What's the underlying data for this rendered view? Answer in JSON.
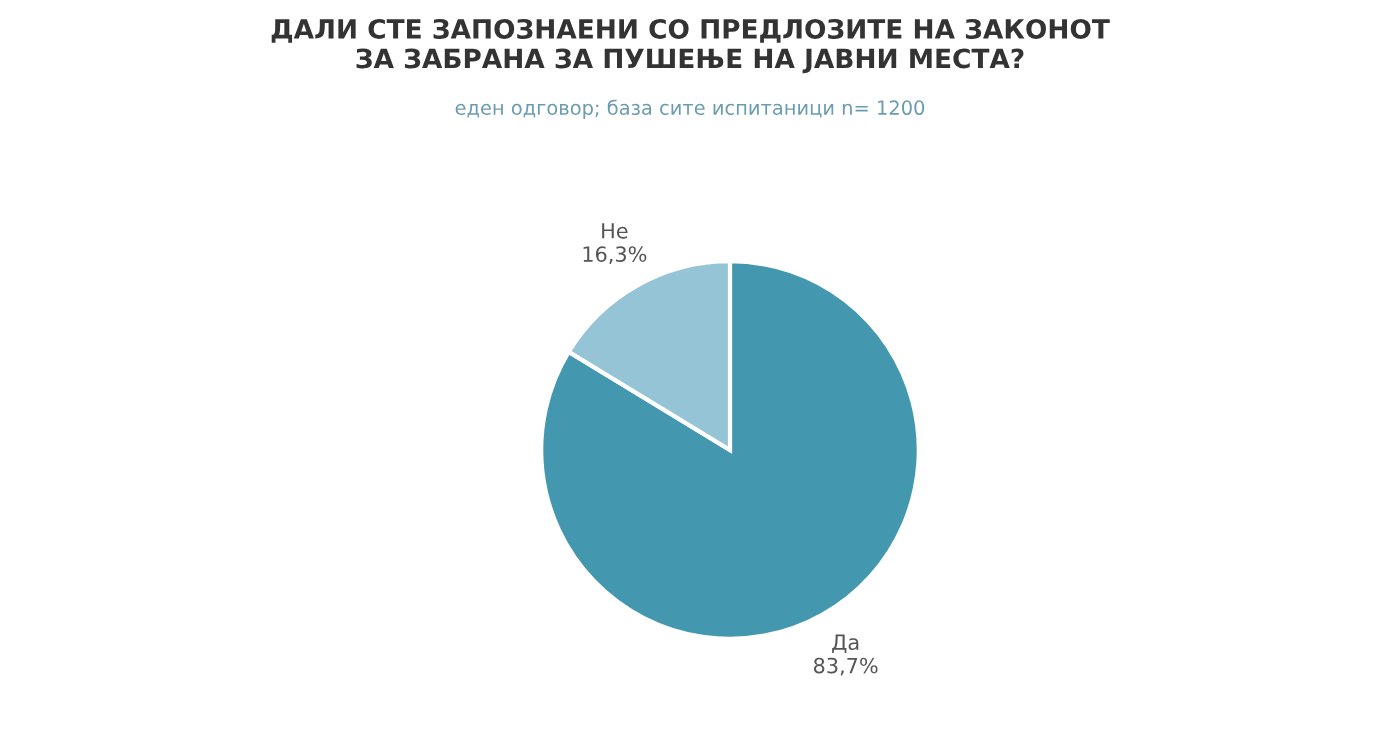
{
  "chart_data": {
    "type": "pie",
    "title": "ДАЛИ СТЕ ЗАПОЗНАЕНИ СО ПРЕДЛОЗИТЕ НА ЗАКОНОТ\nЗА ЗАБРАНА ЗА ПУШЕЊЕ НА ЈАВНИ МЕСТА?",
    "subtitle": "еден одговор; база сите испитаници n= 1200",
    "categories": [
      "Да",
      "Не"
    ],
    "values": [
      83.7,
      16.3
    ],
    "value_labels": [
      "83,7%",
      "16,3%"
    ],
    "colors": [
      "#4398b0",
      "#95c4d6"
    ],
    "legend": false
  }
}
